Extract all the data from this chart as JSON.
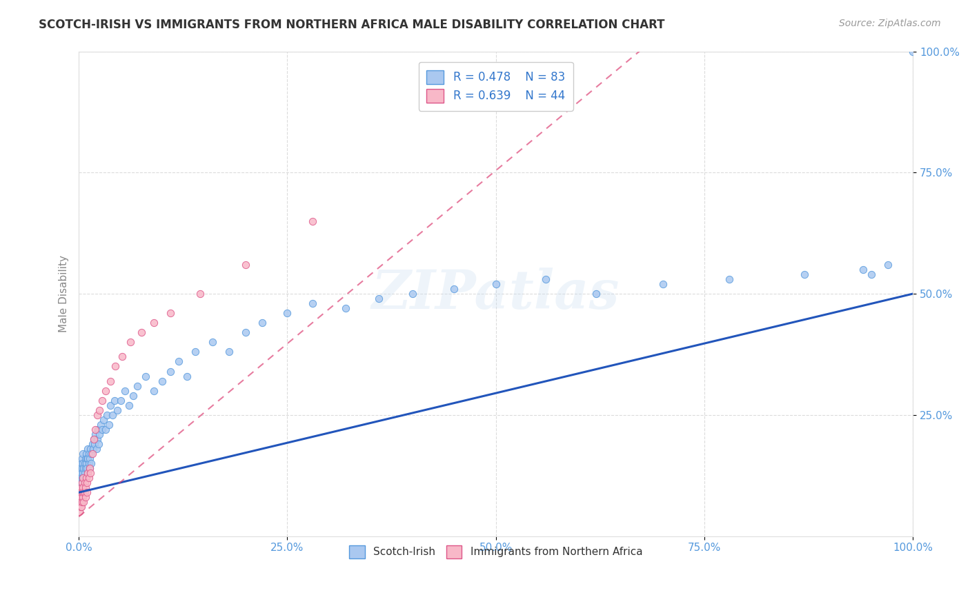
{
  "title": "SCOTCH-IRISH VS IMMIGRANTS FROM NORTHERN AFRICA MALE DISABILITY CORRELATION CHART",
  "source": "Source: ZipAtlas.com",
  "xlabel": "",
  "ylabel": "Male Disability",
  "xlim": [
    0,
    1.0
  ],
  "ylim": [
    0,
    1.0
  ],
  "xticks": [
    0.0,
    0.25,
    0.5,
    0.75,
    1.0
  ],
  "yticks": [
    0.25,
    0.5,
    0.75,
    1.0
  ],
  "xticklabels": [
    "0.0%",
    "25.0%",
    "50.0%",
    "75.0%",
    "100.0%"
  ],
  "yticklabels": [
    "25.0%",
    "50.0%",
    "75.0%",
    "100.0%"
  ],
  "series1_color": "#aac8f0",
  "series1_edge_color": "#5599dd",
  "series2_color": "#f8b8c8",
  "series2_edge_color": "#dd5588",
  "trendline1_color": "#2255bb",
  "trendline2_color": "#dd4477",
  "watermark": "ZIPatlas",
  "legend_R1": "R = 0.478",
  "legend_N1": "N = 83",
  "legend_R2": "R = 0.639",
  "legend_N2": "N = 44",
  "background_color": "#ffffff",
  "grid_color": "#cccccc",
  "title_color": "#333333",
  "axis_label_color": "#888888",
  "tick_color": "#5599dd",
  "scotch_irish_x": [
    0.001,
    0.002,
    0.002,
    0.003,
    0.003,
    0.003,
    0.004,
    0.004,
    0.004,
    0.005,
    0.005,
    0.005,
    0.006,
    0.006,
    0.007,
    0.007,
    0.008,
    0.008,
    0.009,
    0.009,
    0.01,
    0.01,
    0.011,
    0.011,
    0.012,
    0.012,
    0.013,
    0.013,
    0.014,
    0.015,
    0.015,
    0.016,
    0.017,
    0.018,
    0.019,
    0.02,
    0.021,
    0.022,
    0.023,
    0.024,
    0.025,
    0.026,
    0.028,
    0.03,
    0.032,
    0.034,
    0.036,
    0.038,
    0.04,
    0.043,
    0.046,
    0.05,
    0.055,
    0.06,
    0.065,
    0.07,
    0.08,
    0.09,
    0.1,
    0.11,
    0.12,
    0.13,
    0.14,
    0.16,
    0.18,
    0.2,
    0.22,
    0.25,
    0.28,
    0.32,
    0.36,
    0.4,
    0.45,
    0.5,
    0.56,
    0.62,
    0.7,
    0.78,
    0.87,
    0.94,
    0.95,
    0.97,
    1.0
  ],
  "scotch_irish_y": [
    0.13,
    0.14,
    0.12,
    0.15,
    0.13,
    0.11,
    0.14,
    0.16,
    0.12,
    0.15,
    0.13,
    0.17,
    0.14,
    0.12,
    0.15,
    0.13,
    0.16,
    0.14,
    0.17,
    0.15,
    0.16,
    0.14,
    0.18,
    0.16,
    0.15,
    0.17,
    0.16,
    0.14,
    0.18,
    0.17,
    0.15,
    0.19,
    0.18,
    0.2,
    0.19,
    0.21,
    0.18,
    0.2,
    0.22,
    0.19,
    0.21,
    0.23,
    0.22,
    0.24,
    0.22,
    0.25,
    0.23,
    0.27,
    0.25,
    0.28,
    0.26,
    0.28,
    0.3,
    0.27,
    0.29,
    0.31,
    0.33,
    0.3,
    0.32,
    0.34,
    0.36,
    0.33,
    0.38,
    0.4,
    0.38,
    0.42,
    0.44,
    0.46,
    0.48,
    0.47,
    0.49,
    0.5,
    0.51,
    0.52,
    0.53,
    0.5,
    0.52,
    0.53,
    0.54,
    0.55,
    0.54,
    0.56,
    1.0
  ],
  "north_africa_x": [
    0.001,
    0.001,
    0.002,
    0.002,
    0.002,
    0.003,
    0.003,
    0.003,
    0.004,
    0.004,
    0.004,
    0.005,
    0.005,
    0.005,
    0.006,
    0.006,
    0.007,
    0.007,
    0.008,
    0.008,
    0.009,
    0.01,
    0.01,
    0.011,
    0.012,
    0.013,
    0.014,
    0.016,
    0.018,
    0.02,
    0.022,
    0.025,
    0.028,
    0.032,
    0.038,
    0.044,
    0.052,
    0.062,
    0.075,
    0.09,
    0.11,
    0.145,
    0.2,
    0.28
  ],
  "north_africa_y": [
    0.05,
    0.08,
    0.06,
    0.09,
    0.07,
    0.1,
    0.08,
    0.06,
    0.09,
    0.11,
    0.07,
    0.1,
    0.08,
    0.12,
    0.09,
    0.07,
    0.11,
    0.09,
    0.1,
    0.08,
    0.12,
    0.11,
    0.09,
    0.13,
    0.12,
    0.14,
    0.13,
    0.17,
    0.2,
    0.22,
    0.25,
    0.26,
    0.28,
    0.3,
    0.32,
    0.35,
    0.37,
    0.4,
    0.42,
    0.44,
    0.46,
    0.5,
    0.56,
    0.65
  ],
  "trendline1_x_start": 0.0,
  "trendline1_x_end": 1.0,
  "trendline1_y_start": 0.09,
  "trendline1_y_end": 0.5,
  "trendline2_x_start": 0.0,
  "trendline2_x_end": 0.28,
  "trendline2_y_start": 0.04,
  "trendline2_y_end": 0.44
}
